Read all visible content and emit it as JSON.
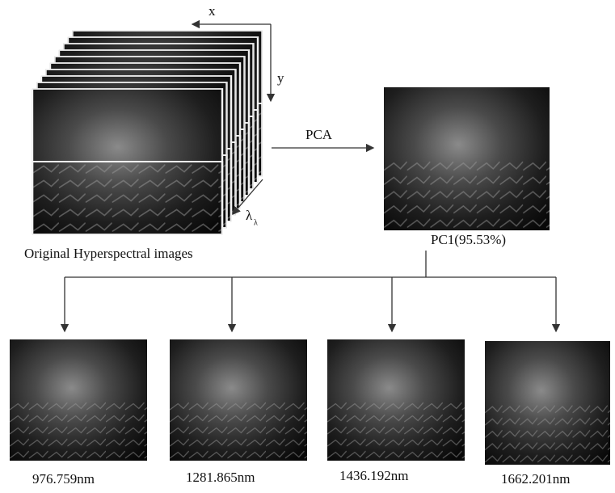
{
  "axes": {
    "x": "x",
    "y": "y",
    "lambda": "λ",
    "lambda_sub": "λ"
  },
  "input_label": "Original Hyperspectral images",
  "method": "PCA",
  "pc_label": "PC1(95.53%)",
  "outputs": [
    "976.759nm",
    "1281.865nm",
    "1436.192nm",
    "1662.201nm"
  ]
}
